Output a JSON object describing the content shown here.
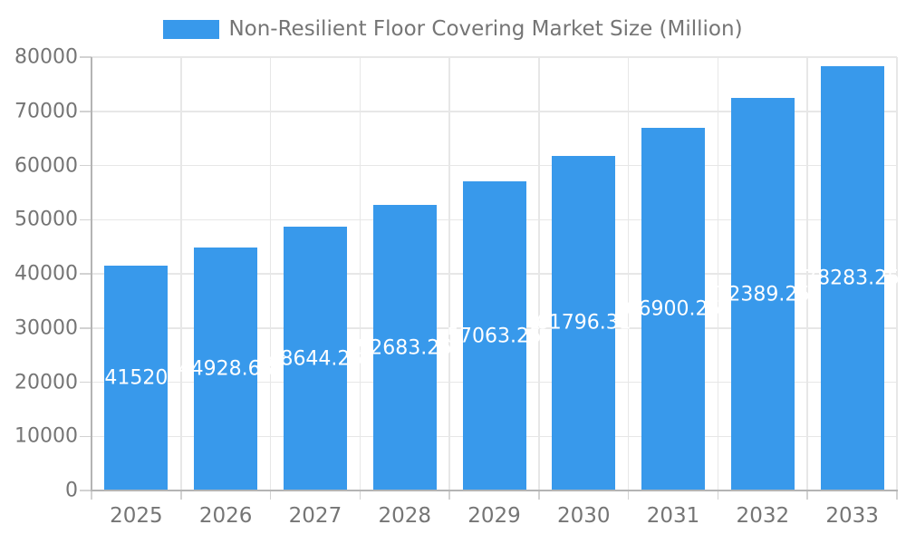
{
  "legend": {
    "label": "Non-Resilient Floor Covering Market Size (Million)"
  },
  "chart_data": {
    "type": "bar",
    "title": "Non-Resilient Floor Covering Market Size (Million)",
    "categories": [
      "2025",
      "2026",
      "2027",
      "2028",
      "2029",
      "2030",
      "2031",
      "2032",
      "2033"
    ],
    "values": [
      41520,
      44928.68,
      48644.25,
      52683.25,
      57063.25,
      61796.31,
      66900.25,
      72389.25,
      78283.25
    ],
    "bar_labels": [
      "41520",
      "44928.68",
      "48644.25",
      "52683.25",
      "57063.25",
      "61796.31",
      "66900.25",
      "72389.25",
      "78283.25"
    ],
    "xlabel": "",
    "ylabel": "",
    "ylim": [
      0,
      80000
    ],
    "ytick_step": 10000,
    "yticks": [
      "0",
      "10000",
      "20000",
      "30000",
      "40000",
      "50000",
      "60000",
      "70000",
      "80000"
    ],
    "grid": true,
    "legend_position": "top",
    "colors": {
      "bar": "#3899EB",
      "bar_label_text": "#ffffff",
      "axis_text": "#757575",
      "gridline": "#e7e7e7",
      "axis_line": "#b4b4b4",
      "tick_mark": "#d2d2d2"
    }
  }
}
